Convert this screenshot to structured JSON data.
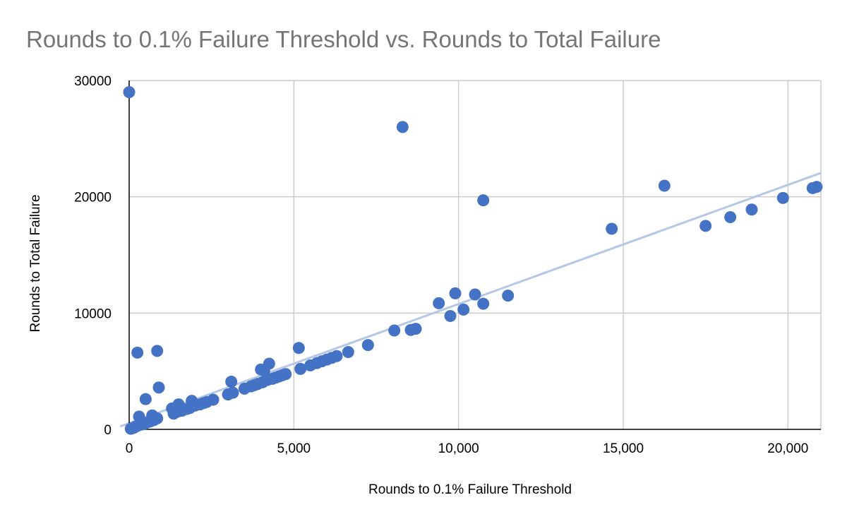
{
  "chart_data": {
    "type": "scatter",
    "title": "Rounds to 0.1% Failure Threshold vs. Rounds to Total Failure",
    "xlabel": "Rounds to 0.1% Failure Threshold",
    "ylabel": "Rounds to Total Failure",
    "xlim": [
      0,
      21000
    ],
    "ylim": [
      0,
      30000
    ],
    "x_ticks": [
      0,
      5000,
      10000,
      15000,
      20000
    ],
    "x_tick_labels": [
      "0",
      "5,000",
      "10,000",
      "15,000",
      "20,000"
    ],
    "y_ticks": [
      0,
      10000,
      20000,
      30000
    ],
    "y_tick_labels": [
      "0",
      "10000",
      "20000",
      "30000"
    ],
    "grid": true,
    "legend": "none",
    "colors": {
      "points": "#4472c4",
      "trendline": "#b4c7e7",
      "title": "#757575"
    },
    "trendline": {
      "type": "linear",
      "start": [
        0,
        550
      ],
      "end": [
        21000,
        22050
      ]
    },
    "series": [
      {
        "points": [
          [
            0,
            29000
          ],
          [
            8300,
            26000
          ],
          [
            10750,
            19700
          ],
          [
            16250,
            20950
          ],
          [
            14650,
            17250
          ],
          [
            17500,
            17500
          ],
          [
            18250,
            18250
          ],
          [
            18900,
            18900
          ],
          [
            19850,
            19900
          ],
          [
            20750,
            20750
          ],
          [
            20870,
            20850
          ],
          [
            9400,
            10850
          ],
          [
            9750,
            9750
          ],
          [
            9900,
            11700
          ],
          [
            10150,
            10300
          ],
          [
            10500,
            11600
          ],
          [
            10750,
            10800
          ],
          [
            11500,
            11500
          ],
          [
            8050,
            8500
          ],
          [
            8550,
            8550
          ],
          [
            8700,
            8650
          ],
          [
            7250,
            7250
          ],
          [
            6650,
            6650
          ],
          [
            6300,
            6300
          ],
          [
            6150,
            6150
          ],
          [
            6000,
            6000
          ],
          [
            5850,
            5850
          ],
          [
            5700,
            5700
          ],
          [
            5500,
            5500
          ],
          [
            5200,
            5200
          ],
          [
            5150,
            7000
          ],
          [
            4250,
            5650
          ],
          [
            4000,
            5150
          ],
          [
            4100,
            5050
          ],
          [
            3100,
            4100
          ],
          [
            4750,
            4750
          ],
          [
            4650,
            4650
          ],
          [
            4550,
            4550
          ],
          [
            4450,
            4450
          ],
          [
            4350,
            4350
          ],
          [
            4200,
            4250
          ],
          [
            4050,
            4050
          ],
          [
            3900,
            3900
          ],
          [
            3800,
            3800
          ],
          [
            3700,
            3700
          ],
          [
            3500,
            3500
          ],
          [
            3150,
            3150
          ],
          [
            3000,
            3000
          ],
          [
            2550,
            2550
          ],
          [
            2350,
            2350
          ],
          [
            2250,
            2250
          ],
          [
            2150,
            2150
          ],
          [
            2000,
            2050
          ],
          [
            1900,
            2450
          ],
          [
            1850,
            1850
          ],
          [
            1750,
            1750
          ],
          [
            1600,
            1600
          ],
          [
            1500,
            2150
          ],
          [
            1450,
            1500
          ],
          [
            1350,
            1350
          ],
          [
            1300,
            1800
          ],
          [
            250,
            6600
          ],
          [
            850,
            6750
          ],
          [
            900,
            3600
          ],
          [
            500,
            2600
          ],
          [
            700,
            1200
          ],
          [
            300,
            1100
          ],
          [
            850,
            950
          ],
          [
            750,
            800
          ],
          [
            650,
            700
          ],
          [
            600,
            650
          ],
          [
            500,
            550
          ],
          [
            450,
            450
          ],
          [
            350,
            400
          ],
          [
            250,
            300
          ],
          [
            200,
            250
          ],
          [
            150,
            150
          ],
          [
            100,
            100
          ],
          [
            50,
            50
          ]
        ]
      }
    ]
  }
}
